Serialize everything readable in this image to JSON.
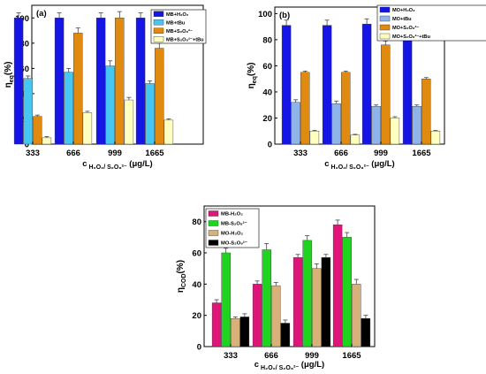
{
  "chart_data": [
    {
      "panel_label": "(a)",
      "type": "bar",
      "categories": [
        "333",
        "666",
        "999",
        "1665"
      ],
      "ylabel_main": "η",
      "ylabel_sub": "eq",
      "ylabel_unit": "(%)",
      "xlabel_prefix": "c",
      "xlabel_sub": "H₂O₂/ S₂O₈²⁻",
      "xlabel_unit": "(μg/L)",
      "ylim": [
        0,
        110
      ],
      "yticks": [
        "0",
        "20",
        "40",
        "60",
        "80",
        "100"
      ],
      "legend_position": "top-right",
      "series": [
        {
          "name": "MB+H₂O₂",
          "color": "#1515e6",
          "values": [
            100,
            100,
            100,
            100
          ],
          "errors": [
            4,
            4,
            4,
            4
          ]
        },
        {
          "name": "MB+tBu",
          "color": "#46c6f2",
          "values": [
            52,
            57,
            62,
            48
          ],
          "errors": [
            2,
            3,
            4,
            2
          ]
        },
        {
          "name": "MB+S₂O₈²⁻",
          "color": "#e08a10",
          "values": [
            22,
            88,
            100,
            76
          ],
          "errors": [
            1,
            4,
            5,
            4
          ]
        },
        {
          "name": "MB+S₂O₈²⁻+tBu",
          "color": "#ffffc0",
          "values": [
            5,
            25,
            35,
            19
          ],
          "errors": [
            1,
            1,
            2,
            1
          ]
        }
      ]
    },
    {
      "panel_label": "(b)",
      "type": "bar",
      "categories": [
        "333",
        "666",
        "999",
        "1665"
      ],
      "ylabel_main": "η",
      "ylabel_sub": "eq",
      "ylabel_unit": "(%)",
      "xlabel_prefix": "c",
      "xlabel_sub": "H₂O₂/ S₂O₈²⁻",
      "xlabel_unit": "(μg/L)",
      "ylim": [
        0,
        105
      ],
      "yticks": [
        "0",
        "20",
        "40",
        "60",
        "80",
        "100"
      ],
      "legend_position": "top-right",
      "series": [
        {
          "name": "MO+H₂O₂",
          "color": "#1515e6",
          "values": [
            91,
            91,
            92,
            93
          ],
          "errors": [
            4,
            4,
            4,
            4
          ]
        },
        {
          "name": "MO+tBu",
          "color": "#8fb4ea",
          "values": [
            32,
            31,
            29,
            29
          ],
          "errors": [
            2,
            2,
            1,
            1
          ]
        },
        {
          "name": "MO+S₂O₈²⁻",
          "color": "#e08a10",
          "values": [
            55,
            55,
            76,
            50
          ],
          "errors": [
            1,
            1,
            3,
            1
          ]
        },
        {
          "name": "MO+S₂O₈²⁻+tBu",
          "color": "#ffffc0",
          "values": [
            10,
            7,
            20,
            10
          ],
          "errors": [
            0.5,
            0.5,
            1,
            0.5
          ]
        }
      ]
    },
    {
      "panel_label": "(c)",
      "type": "bar",
      "categories": [
        "333",
        "666",
        "999",
        "1665"
      ],
      "ylabel_main": "η",
      "ylabel_sub": "COD",
      "ylabel_unit": "(%)",
      "xlabel_prefix": "c",
      "xlabel_sub": "H₂O₂/ S₂O₈²⁻",
      "xlabel_unit": "(μg/L)",
      "ylim": [
        0,
        90
      ],
      "yticks": [
        "0",
        "20",
        "40",
        "60",
        "80"
      ],
      "legend_position": "top-left",
      "series": [
        {
          "name": "MB-H₂O₂",
          "color": "#e0157a",
          "values": [
            28,
            40,
            57,
            78
          ],
          "errors": [
            2,
            2,
            2,
            3
          ]
        },
        {
          "name": "MB-S₂O₈²⁻",
          "color": "#1fd41f",
          "values": [
            60,
            62,
            68,
            70
          ],
          "errors": [
            3,
            4,
            3,
            3
          ]
        },
        {
          "name": "MO-H₂O₂",
          "color": "#d8b07a",
          "values": [
            18,
            39,
            50,
            40
          ],
          "errors": [
            1,
            2,
            3,
            3
          ]
        },
        {
          "name": "MO-S₂O₈²⁻",
          "color": "#000000",
          "values": [
            19,
            15,
            57,
            18
          ],
          "errors": [
            2,
            2,
            2,
            2
          ]
        }
      ]
    }
  ]
}
